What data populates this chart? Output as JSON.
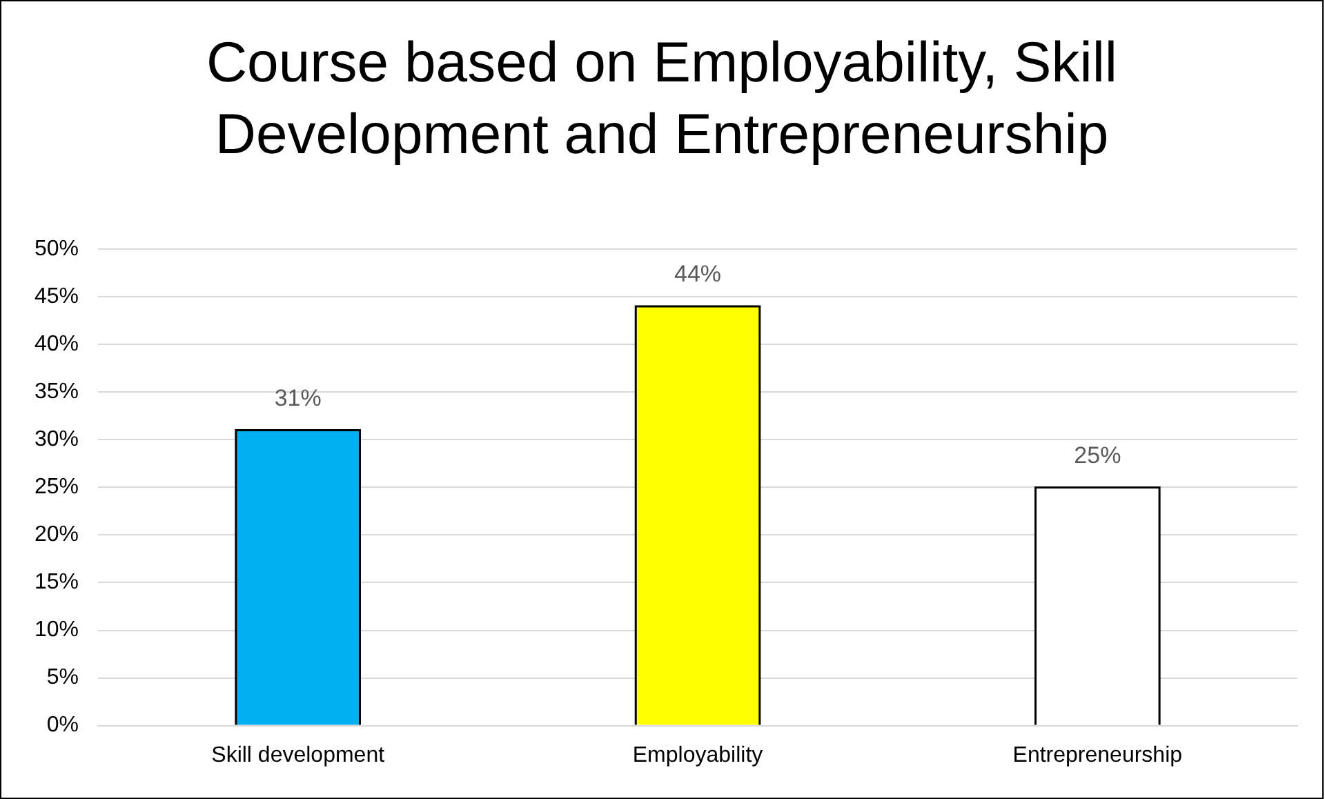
{
  "chart_data": {
    "type": "bar",
    "title": "Course based on Employability, Skill Development and Entrepreneurship",
    "categories": [
      "Skill development",
      "Employability",
      "Entrepreneurship"
    ],
    "values": [
      31,
      44,
      25
    ],
    "colors": [
      "#00b0f0",
      "#ffff00",
      "#ffffff"
    ],
    "value_labels": [
      "31%",
      "44%",
      "25%"
    ],
    "ylim": [
      0,
      50
    ],
    "yticks": [
      {
        "value": 0,
        "label": "0%"
      },
      {
        "value": 5,
        "label": "5%"
      },
      {
        "value": 10,
        "label": "10%"
      },
      {
        "value": 15,
        "label": "15%"
      },
      {
        "value": 20,
        "label": "20%"
      },
      {
        "value": 25,
        "label": "25%"
      },
      {
        "value": 30,
        "label": "30%"
      },
      {
        "value": 35,
        "label": "35%"
      },
      {
        "value": 40,
        "label": "40%"
      },
      {
        "value": 45,
        "label": "45%"
      },
      {
        "value": 50,
        "label": "50%"
      }
    ],
    "grid": "y",
    "legend": false
  }
}
